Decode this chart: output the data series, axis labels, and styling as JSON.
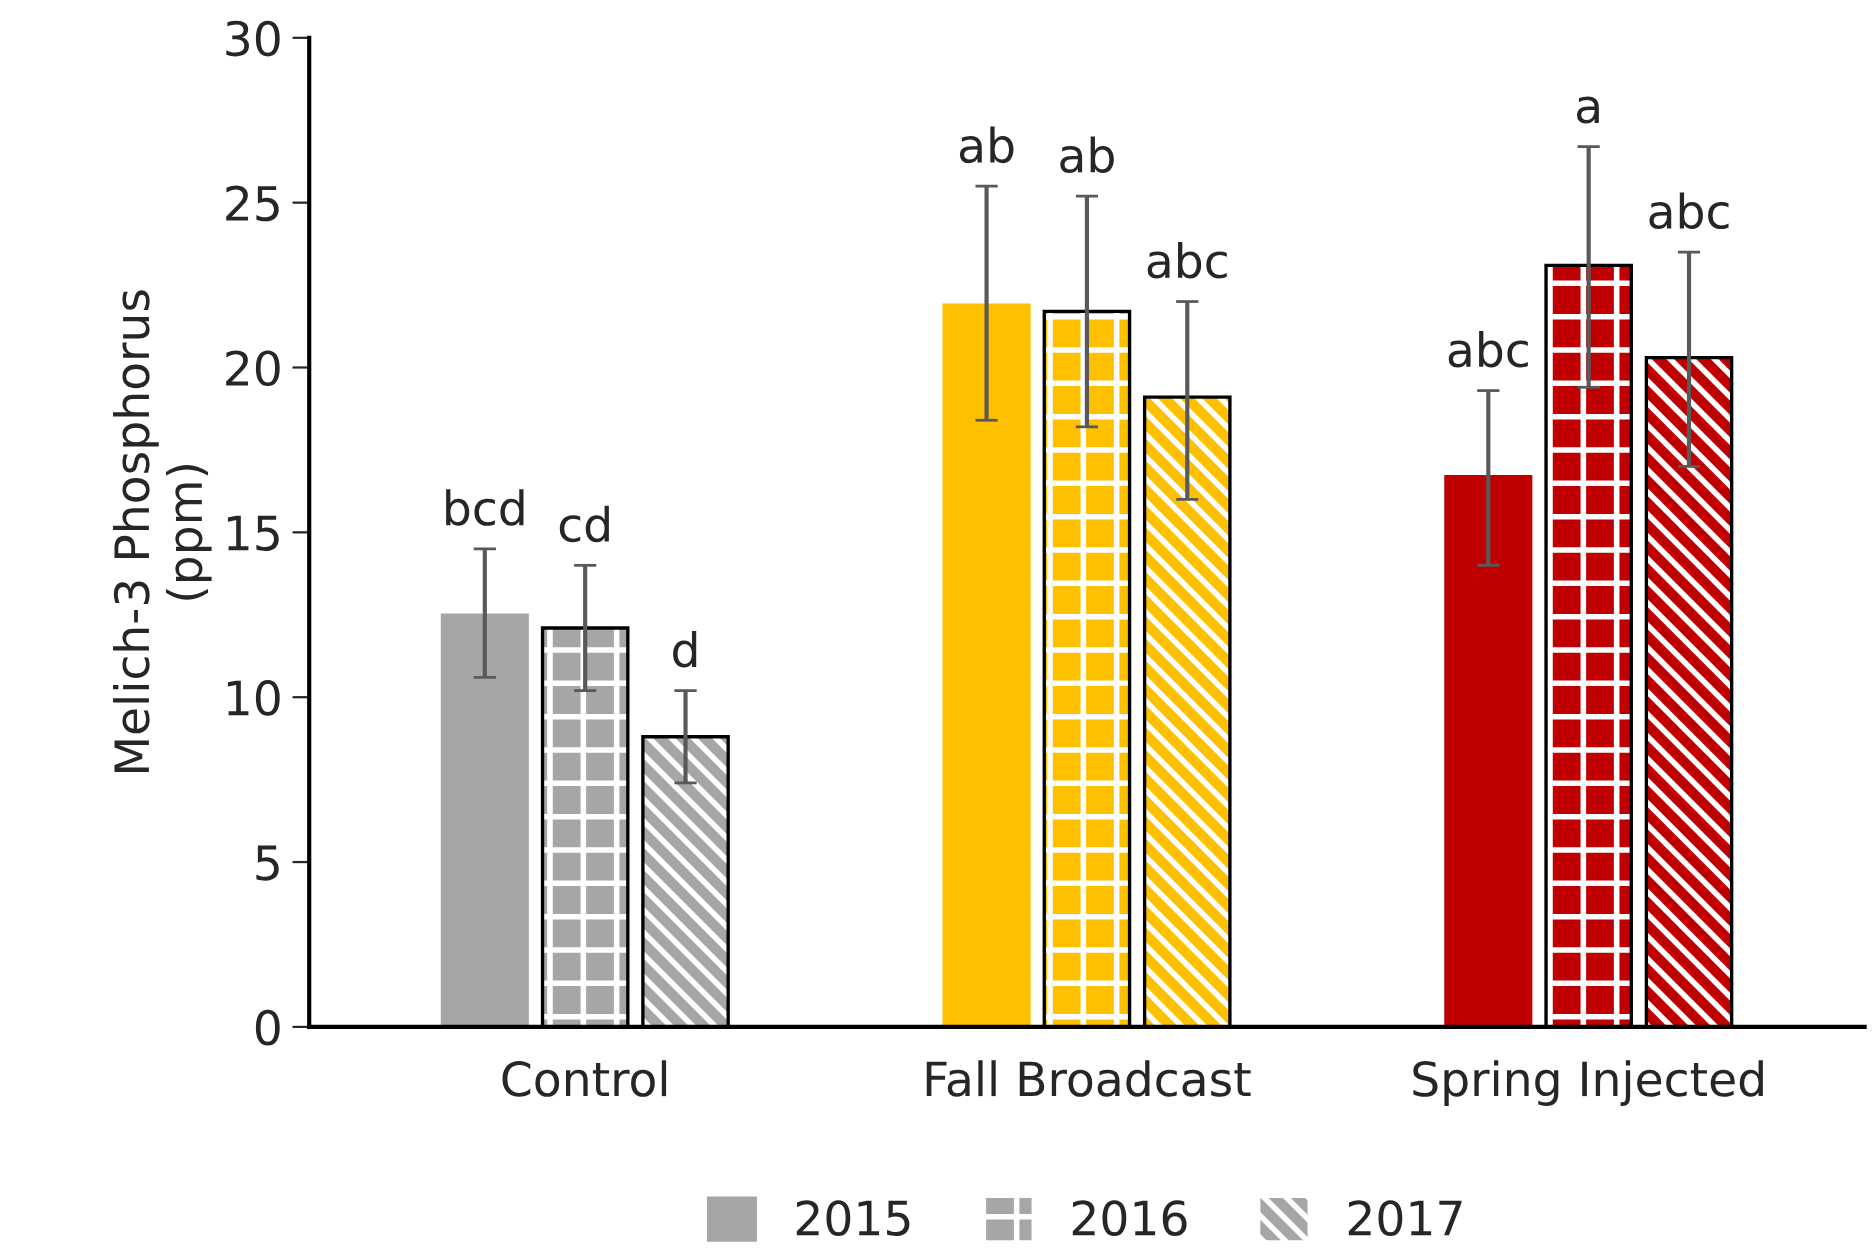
{
  "chart_data": {
    "type": "bar",
    "ylabel": "Melich-3 Phosphorus\n(ppm)",
    "categories": [
      "Control",
      "Fall Broadcast",
      "Spring Injected"
    ],
    "series": [
      {
        "name": "2015",
        "colors": [
          "#a6a6a6",
          "#ffc000",
          "#c00000"
        ],
        "values": [
          12.5,
          21.9,
          16.7
        ],
        "errors": [
          [
            10.6,
            14.5
          ],
          [
            18.4,
            25.5
          ],
          [
            14.0,
            19.3
          ]
        ],
        "value_labels": [
          "bcd",
          "ab",
          "abc"
        ]
      },
      {
        "name": "2016",
        "colors": [
          "#a6a6a6",
          "#ffc000",
          "#c00000"
        ],
        "values": [
          12.1,
          21.7,
          23.1
        ],
        "errors": [
          [
            10.2,
            14.0
          ],
          [
            18.2,
            25.2
          ],
          [
            19.4,
            26.7
          ]
        ],
        "value_labels": [
          "cd",
          "ab",
          "a"
        ]
      },
      {
        "name": "2017",
        "colors": [
          "#a6a6a6",
          "#ffc000",
          "#c00000"
        ],
        "values": [
          8.8,
          19.1,
          20.3
        ],
        "errors": [
          [
            7.4,
            10.2
          ],
          [
            16.0,
            22.0
          ],
          [
            17.0,
            23.5
          ]
        ],
        "value_labels": [
          "d",
          "abc",
          "abc"
        ]
      }
    ],
    "ylim": [
      0,
      30
    ],
    "yticks": [
      0,
      5,
      10,
      15,
      20,
      25,
      30
    ],
    "grid": false,
    "legend": "bottom"
  }
}
